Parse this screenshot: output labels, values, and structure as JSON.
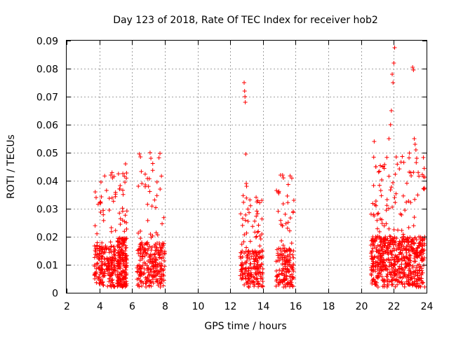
{
  "chart_data": {
    "type": "scatter",
    "title": "Day 123 of 2018, Rate Of TEC Index for receiver hob2",
    "xlabel": "GPS time / hours",
    "ylabel": "ROTI / TECUs",
    "xlim": [
      2,
      24
    ],
    "ylim": [
      0,
      0.09
    ],
    "xticks": [
      2,
      4,
      6,
      8,
      10,
      12,
      14,
      16,
      18,
      20,
      22,
      24
    ],
    "yticks": [
      0,
      0.01,
      0.02,
      0.03,
      0.04,
      0.05,
      0.06,
      0.07,
      0.08,
      0.09
    ],
    "ytick_labels": [
      "0",
      "0.01",
      "0.02",
      "0.03",
      "0.04",
      "0.05",
      "0.06",
      "0.07",
      "0.08",
      "0.09"
    ],
    "grid": true,
    "marker": "plus",
    "color": "#ff0000",
    "clusters": [
      {
        "x": [
          3.7,
          5.0
        ],
        "y_base": [
          0.002,
          0.017
        ],
        "y_peak": [
          0.004,
          0.043
        ],
        "density": 220
      },
      {
        "x": [
          5.1,
          5.7
        ],
        "y_base": [
          0.002,
          0.02
        ],
        "y_peak": [
          0.005,
          0.046
        ],
        "density": 200
      },
      {
        "x": [
          6.3,
          8.0
        ],
        "y_base": [
          0.002,
          0.018
        ],
        "y_peak": [
          0.005,
          0.05
        ],
        "density": 260
      },
      {
        "x": [
          12.6,
          14.0
        ],
        "y_base": [
          0.002,
          0.015
        ],
        "y_peak": [
          0.004,
          0.035
        ],
        "density": 200
      },
      {
        "x": [
          14.8,
          15.9
        ],
        "y_base": [
          0.002,
          0.016
        ],
        "y_peak": [
          0.004,
          0.042
        ],
        "density": 160
      },
      {
        "x": [
          20.6,
          23.9
        ],
        "y_base": [
          0.002,
          0.02
        ],
        "y_peak": [
          0.005,
          0.05
        ],
        "density": 650
      }
    ],
    "outliers": [
      {
        "x": 3.75,
        "y": 0.036
      },
      {
        "x": 3.8,
        "y": 0.034
      },
      {
        "x": 4.7,
        "y": 0.042
      },
      {
        "x": 4.8,
        "y": 0.041
      },
      {
        "x": 5.6,
        "y": 0.046
      },
      {
        "x": 7.1,
        "y": 0.05
      },
      {
        "x": 7.15,
        "y": 0.048
      },
      {
        "x": 6.6,
        "y": 0.039
      },
      {
        "x": 12.85,
        "y": 0.075
      },
      {
        "x": 12.88,
        "y": 0.072
      },
      {
        "x": 12.9,
        "y": 0.07
      },
      {
        "x": 12.92,
        "y": 0.068
      },
      {
        "x": 12.95,
        "y": 0.0495
      },
      {
        "x": 12.98,
        "y": 0.039
      },
      {
        "x": 13.0,
        "y": 0.038
      },
      {
        "x": 15.2,
        "y": 0.042
      },
      {
        "x": 15.25,
        "y": 0.041
      },
      {
        "x": 20.8,
        "y": 0.054
      },
      {
        "x": 20.9,
        "y": 0.045
      },
      {
        "x": 21.7,
        "y": 0.055
      },
      {
        "x": 21.8,
        "y": 0.06
      },
      {
        "x": 21.85,
        "y": 0.065
      },
      {
        "x": 21.9,
        "y": 0.078
      },
      {
        "x": 21.95,
        "y": 0.075
      },
      {
        "x": 22.0,
        "y": 0.082
      },
      {
        "x": 22.05,
        "y": 0.0875
      },
      {
        "x": 23.15,
        "y": 0.0805
      },
      {
        "x": 23.2,
        "y": 0.0795
      },
      {
        "x": 23.25,
        "y": 0.055
      },
      {
        "x": 23.3,
        "y": 0.053
      },
      {
        "x": 23.35,
        "y": 0.051
      },
      {
        "x": 23.4,
        "y": 0.048
      },
      {
        "x": 23.2,
        "y": 0.043
      }
    ]
  }
}
